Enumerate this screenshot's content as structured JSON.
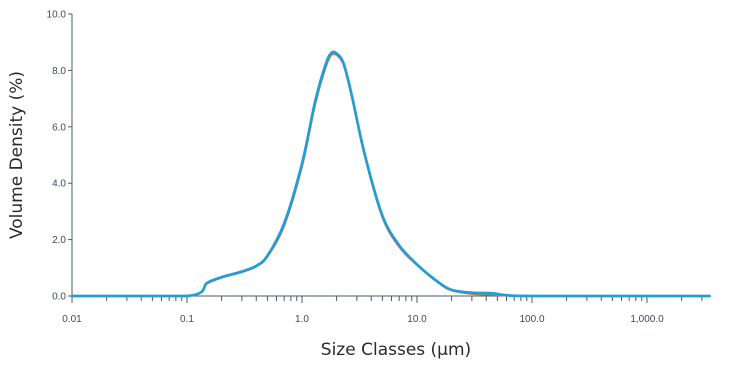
{
  "chart_data": {
    "type": "line",
    "title": "",
    "xlabel": "Size Classes (μm)",
    "ylabel": "Volume Density (%)",
    "x_scale": "log",
    "xlim": [
      0.01,
      3500
    ],
    "ylim": [
      0,
      10
    ],
    "x_ticks": [
      0.01,
      0.1,
      1,
      10,
      100,
      1000
    ],
    "x_tick_labels": [
      "0.01",
      "0.1",
      "1.0",
      "10.0",
      "100.0",
      "1,000.0"
    ],
    "y_ticks": [
      0,
      2,
      4,
      6,
      8,
      10
    ],
    "y_tick_labels": [
      "0.0",
      "2.0",
      "4.0",
      "6.0",
      "8.0",
      "10.0"
    ],
    "grid": false,
    "series": [
      {
        "color": "#e8604c",
        "x": [
          0.01,
          0.1,
          0.15,
          0.2,
          0.3,
          0.4,
          0.5,
          0.7,
          1.0,
          1.3,
          1.6,
          1.8,
          2.0,
          2.3,
          2.7,
          3.5,
          5.0,
          7.0,
          10.0,
          15.0,
          20.0,
          30.0,
          45.0,
          60.0,
          100.0,
          1000.0,
          3500.0
        ],
        "y": [
          0.0,
          0.0,
          0.45,
          0.65,
          0.85,
          1.05,
          1.4,
          2.5,
          4.6,
          6.8,
          8.1,
          8.55,
          8.55,
          8.2,
          7.1,
          5.0,
          2.8,
          1.75,
          1.1,
          0.5,
          0.2,
          0.08,
          0.05,
          0.02,
          0.0,
          0.0,
          0.0
        ]
      },
      {
        "color": "#5cb85c",
        "x": [
          0.01,
          0.1,
          0.15,
          0.2,
          0.3,
          0.4,
          0.5,
          0.7,
          1.0,
          1.3,
          1.6,
          1.8,
          2.0,
          2.3,
          2.7,
          3.5,
          5.0,
          7.0,
          10.0,
          15.0,
          20.0,
          30.0,
          45.0,
          60.0,
          100.0,
          1000.0,
          3500.0
        ],
        "y": [
          0.0,
          0.0,
          0.46,
          0.66,
          0.86,
          1.06,
          1.42,
          2.55,
          4.65,
          6.85,
          8.15,
          8.6,
          8.6,
          8.25,
          7.15,
          5.05,
          2.85,
          1.8,
          1.12,
          0.52,
          0.22,
          0.1,
          0.08,
          0.03,
          0.0,
          0.0,
          0.0
        ]
      },
      {
        "color": "#1e9fd8",
        "x": [
          0.01,
          0.1,
          0.15,
          0.2,
          0.3,
          0.4,
          0.5,
          0.7,
          1.0,
          1.3,
          1.6,
          1.8,
          2.0,
          2.3,
          2.7,
          3.5,
          5.0,
          7.0,
          10.0,
          15.0,
          20.0,
          30.0,
          45.0,
          60.0,
          100.0,
          1000.0,
          3500.0
        ],
        "y": [
          0.0,
          0.0,
          0.47,
          0.67,
          0.87,
          1.07,
          1.43,
          2.58,
          4.7,
          6.9,
          8.2,
          8.62,
          8.6,
          8.25,
          7.15,
          5.05,
          2.85,
          1.8,
          1.12,
          0.52,
          0.22,
          0.12,
          0.1,
          0.03,
          0.0,
          0.0,
          0.0
        ]
      }
    ]
  }
}
